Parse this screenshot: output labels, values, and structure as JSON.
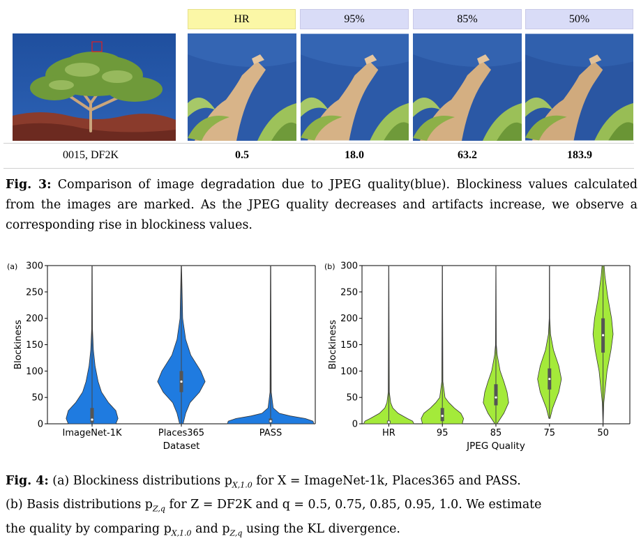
{
  "fig3": {
    "headers": [
      "HR",
      "95%",
      "85%",
      "50%"
    ],
    "image_label": "0015, DF2K",
    "values": [
      "0.5",
      "18.0",
      "63.2",
      "183.9"
    ],
    "caption_label": "Fig. 3:",
    "caption_text": " Comparison of image degradation due to JPEG quality(blue). Blockiness values calculated from the images are marked. As the JPEG quality decreases and artifacts increase, we observe a corresponding rise in blockiness values."
  },
  "chart_data": [
    {
      "type": "violin",
      "panel": "(a)",
      "categories": [
        "ImageNet-1K",
        "Places365",
        "PASS"
      ],
      "xlabel": "Dataset",
      "ylabel": "Blockiness",
      "ylim": [
        0,
        300
      ],
      "yticks": [
        0,
        50,
        100,
        150,
        200,
        250,
        300
      ],
      "color": "#1f7be0",
      "medians": [
        8,
        80,
        5
      ]
    },
    {
      "type": "violin",
      "panel": "(b)",
      "categories": [
        "HR",
        "95",
        "85",
        "75",
        "50"
      ],
      "xlabel": "JPEG Quality",
      "ylabel": "Blockiness",
      "ylim": [
        0,
        300
      ],
      "yticks": [
        0,
        50,
        100,
        150,
        200,
        250,
        300
      ],
      "color": "#a4ea3a",
      "medians": [
        3,
        15,
        50,
        85,
        168
      ]
    }
  ],
  "fig4": {
    "caption_label": "Fig. 4:",
    "line1": " (a) Blockiness distributions p",
    "line1_sub": "X,1.0",
    "line1_rest": " for X = ImageNet-1k, Places365 and PASS.",
    "line2": "(b) Basis distributions p",
    "line2_sub": "Z,q",
    "line2_rest": " for Z = DF2K and q = 0.5, 0.75, 0.85, 0.95, 1.0. We estimate",
    "line3": "the quality by comparing p",
    "line3_sub1": "X,1.0",
    "line3_mid": " and p",
    "line3_sub2": "Z,q",
    "line3_rest": " using the KL divergence."
  }
}
